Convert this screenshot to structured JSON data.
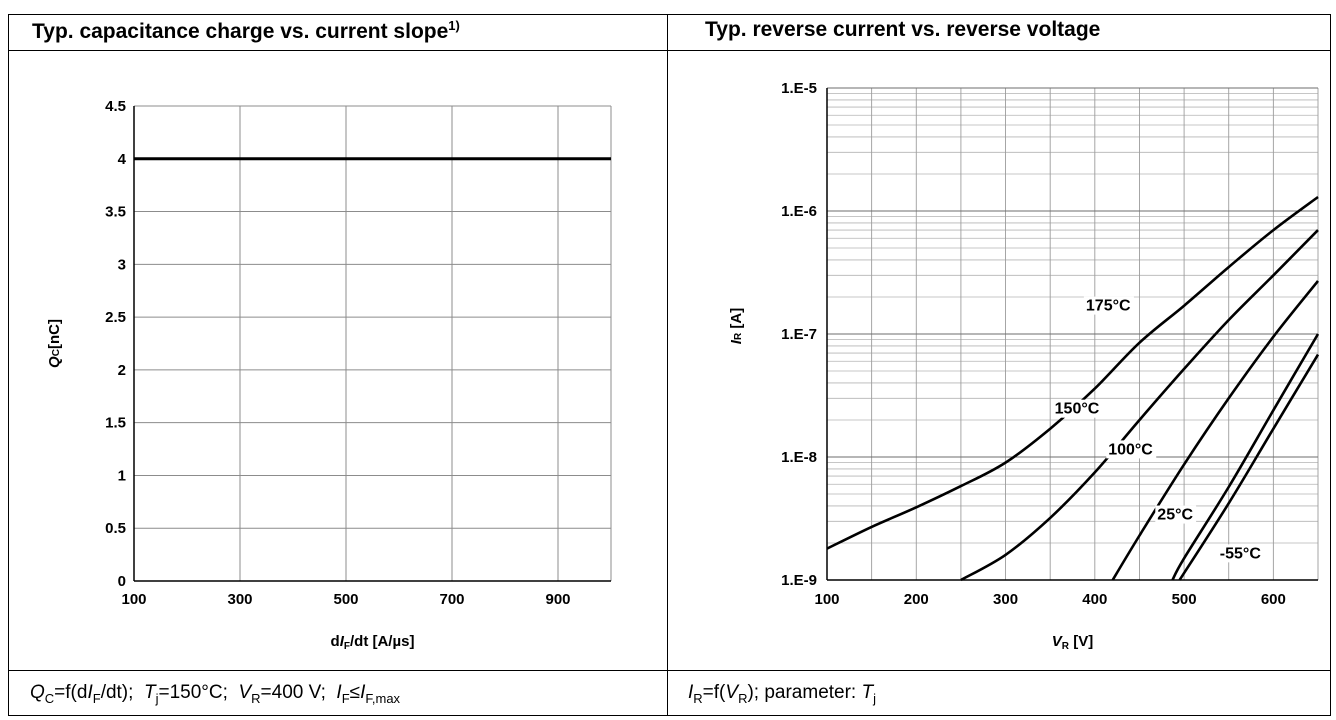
{
  "panels": {
    "left": {
      "header_text": "Typ. capacitance charge vs. current slope",
      "header_sup": "1)",
      "caption": {
        "q": "Q",
        "q_sub": "C",
        "f_open": "=f(d",
        "i": "I",
        "i_sub": "F",
        "dt": "/dt); ",
        "t": "T",
        "t_sub": "j",
        "t_val": "=150°C; ",
        "v": "V",
        "v_sub": "R",
        "v_val": "=400 V; ",
        "if": "I",
        "if_sub": "F",
        "le": "≤",
        "ifm": "I",
        "ifm_sub": "F,max"
      }
    },
    "right": {
      "header_text": "Typ. reverse current vs. reverse voltage",
      "caption": {
        "i": "I",
        "i_sub": "R",
        "f_open": "=f(",
        "v": "V",
        "v_sub": "R",
        "mid": "); parameter: ",
        "t": "T",
        "t_sub": "j"
      }
    }
  },
  "chart_data": [
    {
      "type": "line",
      "title": "Typ. capacitance charge vs. current slope",
      "xlabel": {
        "pre": "d",
        "var": "I",
        "sub": "F",
        "post": "/dt [A/µs]"
      },
      "ylabel": {
        "var": "Q",
        "sub": "C",
        "post": "[nC]"
      },
      "xlim": [
        100,
        1000
      ],
      "ylim": [
        0,
        4.5
      ],
      "x_ticks": [
        100,
        300,
        500,
        700,
        900
      ],
      "x_tick_labels": [
        "100",
        "300",
        "500",
        "700",
        "900"
      ],
      "y_ticks": [
        0,
        0.5,
        1,
        1.5,
        2,
        2.5,
        3,
        3.5,
        4,
        4.5
      ],
      "y_tick_labels": [
        "0",
        "0.5",
        "1",
        "1.5",
        "2",
        "2.5",
        "3",
        "3.5",
        "4",
        "4.5"
      ],
      "grid": true,
      "series": [
        {
          "x": [
            100,
            1000
          ],
          "y": [
            4,
            4
          ]
        }
      ]
    },
    {
      "type": "line",
      "title": "Typ. reverse current vs. reverse voltage",
      "xlabel": {
        "var": "V",
        "sub": "R",
        "post": " [V]"
      },
      "ylabel": {
        "var": "I",
        "sub": "R",
        "post": " [A]"
      },
      "xlim": [
        100,
        650
      ],
      "ylim": [
        1e-09,
        1e-05
      ],
      "y_scale": "log",
      "x_ticks": [
        100,
        200,
        300,
        400,
        500,
        600
      ],
      "x_tick_labels": [
        "100",
        "200",
        "300",
        "400",
        "500",
        "600"
      ],
      "y_ticks": [
        1e-09,
        1e-08,
        1e-07,
        1e-06,
        1e-05
      ],
      "y_tick_labels": [
        "1.E-9",
        "1.E-8",
        "1.E-7",
        "1.E-6",
        "1.E-5"
      ],
      "grid": true,
      "series": [
        {
          "name": "175°C",
          "x": [
            100,
            150,
            200,
            250,
            300,
            350,
            400,
            450,
            500,
            550,
            600,
            650
          ],
          "y": [
            1.8e-09,
            2.7e-09,
            3.9e-09,
            5.8e-09,
            9e-09,
            1.7e-08,
            3.6e-08,
            8.5e-08,
            1.7e-07,
            3.5e-07,
            7e-07,
            1.3e-06
          ]
        },
        {
          "name": "150°C",
          "x": [
            250,
            300,
            350,
            400,
            450,
            500,
            550,
            600,
            650
          ],
          "y": [
            1e-09,
            1.6e-09,
            3.2e-09,
            7.5e-09,
            2e-08,
            5.2e-08,
            1.3e-07,
            3e-07,
            7e-07
          ]
        },
        {
          "name": "100°C",
          "x": [
            420,
            450,
            500,
            550,
            600,
            650
          ],
          "y": [
            1e-09,
            2.3e-09,
            8.7e-09,
            3e-08,
            9.5e-08,
            2.7e-07
          ]
        },
        {
          "name": "25°C",
          "x": [
            487,
            500,
            550,
            600,
            650
          ],
          "y": [
            1e-09,
            1.5e-09,
            5.7e-09,
            2.4e-08,
            1e-07
          ]
        },
        {
          "name": "-55°C",
          "x": [
            495,
            550,
            600,
            650
          ],
          "y": [
            1e-09,
            4.2e-09,
            1.7e-08,
            6.8e-08
          ]
        }
      ],
      "annotations": [
        {
          "text": "175°C",
          "x": 390,
          "y": 1.55e-07
        },
        {
          "text": "150°C",
          "x": 355,
          "y": 2.25e-08
        },
        {
          "text": "100°C",
          "x": 415,
          "y": 1.05e-08
        },
        {
          "text": "25°C",
          "x": 470,
          "y": 3.1e-09
        },
        {
          "text": "-55°C",
          "x": 540,
          "y": 1.5e-09
        }
      ]
    }
  ]
}
